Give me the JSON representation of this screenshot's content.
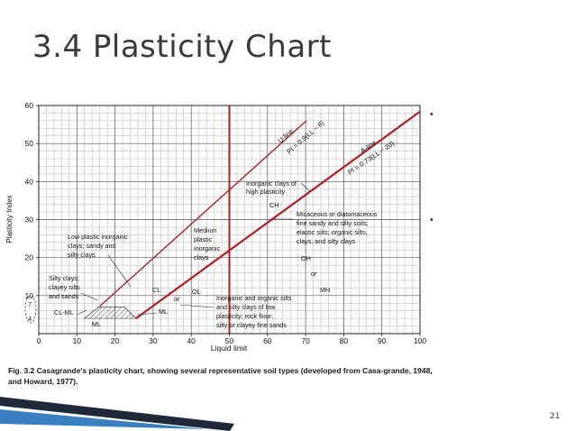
{
  "slide": {
    "title": "3.4 Plasticity Chart",
    "page_number": "21",
    "bullets": [
      "•",
      "•"
    ]
  },
  "caption": {
    "fig_label": "Fig. 3.2",
    "text": "Casagrande's plasticity chart, showing several representative soil types (developed from Casa-grande, 1948, and Howard, 1977)."
  },
  "colors": {
    "lines": "#b01e24",
    "grid": "#555555",
    "title": "#3a3a3a",
    "footer_dark": "#1e2a3a",
    "footer_blue": "#3a7fc0"
  },
  "chart_data": {
    "type": "line",
    "xlabel": "Liquid limit",
    "ylabel": "Plasticity Index",
    "xlim": [
      0,
      100
    ],
    "ylim": [
      0,
      60
    ],
    "x_ticks": [
      0,
      10,
      20,
      30,
      40,
      50,
      60,
      70,
      80,
      90,
      100
    ],
    "y_ticks": [
      10,
      20,
      30,
      40,
      50,
      60
    ],
    "y_extra_ticks": [
      "7",
      "4"
    ],
    "grid": true,
    "series": [
      {
        "name": "U-line",
        "equation": "PI = 0.9(LL − 8)",
        "x": [
          16,
          70.2
        ],
        "y": [
          7.2,
          56.0
        ]
      },
      {
        "name": "A-line",
        "equation": "PI = 0.73(LL − 20)",
        "x": [
          25.5,
          100
        ],
        "y": [
          4.0,
          58.4
        ]
      },
      {
        "name": "LL = 50",
        "equation": "",
        "x": [
          50,
          50
        ],
        "y": [
          0,
          60
        ]
      }
    ],
    "regions": [
      {
        "name": "CL-ML",
        "x": [
          12,
          25.5
        ],
        "y": [
          4,
          7
        ]
      }
    ],
    "annotations": [
      "U-line",
      "PI = 0.9(LL − 8)",
      "A-line",
      "PI = 0.73(LL − 20)",
      "Inorganic clays of",
      "high plasticity",
      "CH",
      "Micaceous or diatomaceous",
      "fine sandy and silty soils;",
      "elastic silts; organic silts,",
      "clays, and silty clays",
      "OH",
      "or",
      "MH",
      "Medium",
      "plastic",
      "inorganic",
      "clays",
      "Low plastic inorganic",
      "clays; sandy and",
      "silty clays",
      "Silty clays;",
      "clayey silts",
      "and sands",
      "CL",
      "OL",
      "or",
      "CL-ML",
      "ML",
      "ML",
      "Inorganic and organic silts",
      "and silty clays of low",
      "plasticity; rock flour;",
      "silty or clayey fine sands"
    ]
  }
}
